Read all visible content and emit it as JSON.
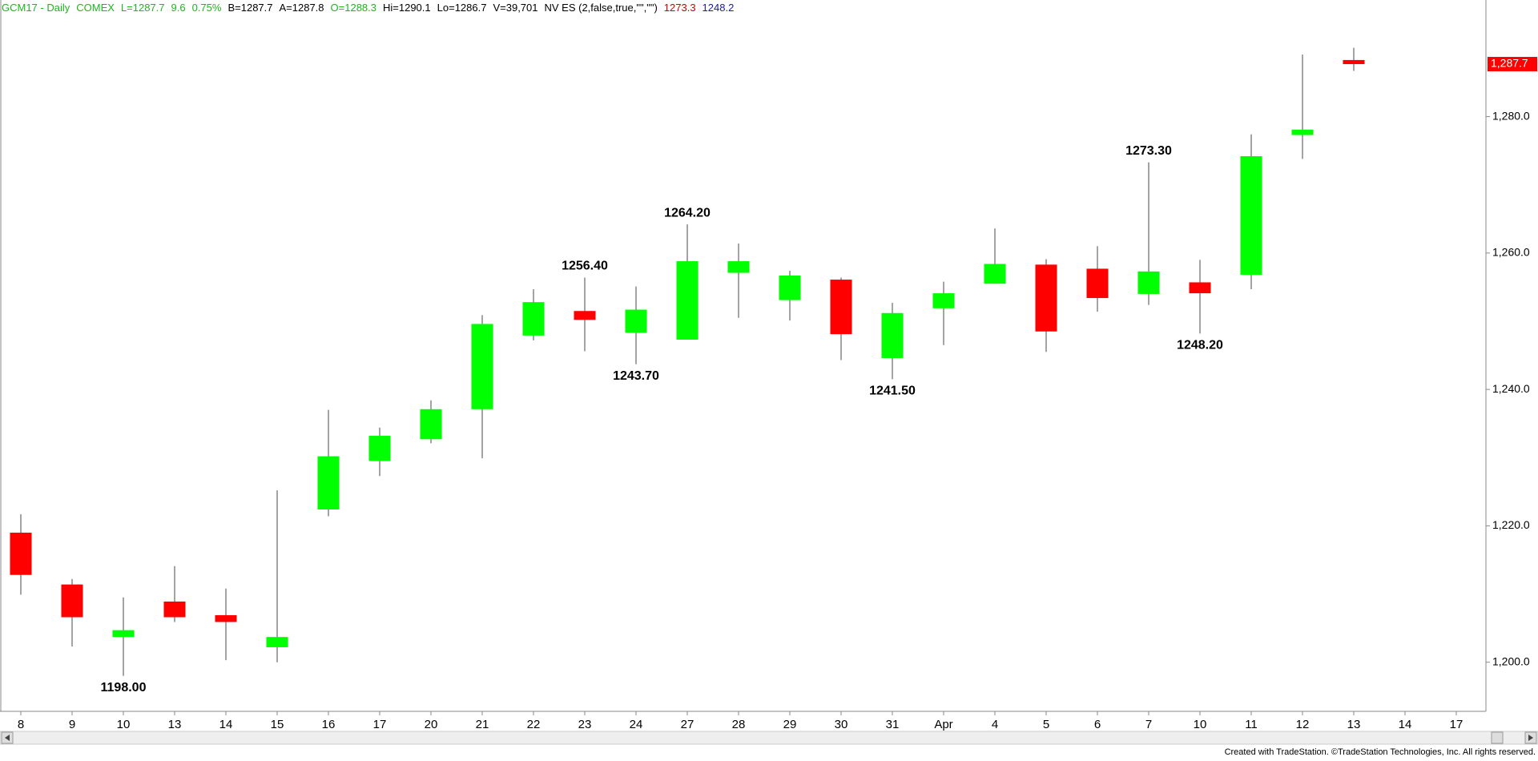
{
  "chart_data": {
    "type": "candlestick",
    "header": [
      {
        "text": "GCM17 - Daily",
        "color": "#1fb51f"
      },
      {
        "text": "COMEX",
        "color": "#1fb51f"
      },
      {
        "text": "L=1287.7",
        "color": "#1fb51f"
      },
      {
        "text": "9.6",
        "color": "#1fb51f"
      },
      {
        "text": "0.75%",
        "color": "#1fb51f"
      },
      {
        "text": "B=1287.7",
        "color": "#000000"
      },
      {
        "text": "A=1287.8",
        "color": "#000000"
      },
      {
        "text": "O=1288.3",
        "color": "#1fb51f"
      },
      {
        "text": "Hi=1290.1",
        "color": "#000000"
      },
      {
        "text": "Lo=1286.7",
        "color": "#000000"
      },
      {
        "text": "V=39,701",
        "color": "#000000"
      },
      {
        "text": "NV ES (2,false,true,\"\",\"\")",
        "color": "#000000"
      },
      {
        "text": "1273.3",
        "color": "#d00000"
      },
      {
        "text": "1248.2",
        "color": "#1a1aa0"
      }
    ],
    "categories": [
      "8",
      "9",
      "10",
      "13",
      "14",
      "15",
      "16",
      "17",
      "20",
      "21",
      "22",
      "23",
      "24",
      "27",
      "28",
      "29",
      "30",
      "31",
      "Apr",
      "4",
      "5",
      "6",
      "7",
      "10",
      "11",
      "12",
      "13",
      "14",
      "17"
    ],
    "open": [
      1219.0,
      1211.4,
      1203.7,
      1208.9,
      1206.9,
      1202.2,
      1222.4,
      1229.5,
      1232.7,
      1237.1,
      1247.9,
      1251.5,
      1248.3,
      1247.3,
      1257.1,
      1253.1,
      1256.1,
      1244.6,
      1251.9,
      1255.5,
      1258.3,
      1257.7,
      1254.0,
      1255.7,
      1256.8,
      1277.3,
      1288.3,
      null,
      null
    ],
    "high": [
      1221.7,
      1212.2,
      1209.5,
      1214.1,
      1210.8,
      1225.2,
      1237.0,
      1234.4,
      1238.4,
      1250.9,
      1254.7,
      1256.4,
      1255.1,
      1264.2,
      1261.4,
      1257.4,
      1256.4,
      1252.7,
      1255.8,
      1263.6,
      1259.1,
      1261.0,
      1273.3,
      1259.0,
      1277.4,
      1289.1,
      1290.1,
      null,
      null
    ],
    "low": [
      1209.9,
      1202.3,
      1198.0,
      1205.9,
      1200.3,
      1200.0,
      1221.4,
      1227.3,
      1232.1,
      1229.9,
      1247.2,
      1245.6,
      1243.7,
      1247.3,
      1250.5,
      1250.1,
      1244.3,
      1241.5,
      1246.5,
      1255.5,
      1245.5,
      1251.4,
      1252.4,
      1248.2,
      1254.7,
      1273.8,
      1286.7,
      null,
      null
    ],
    "close": [
      1212.8,
      1206.6,
      1204.7,
      1206.6,
      1205.9,
      1203.7,
      1230.2,
      1233.2,
      1237.1,
      1249.6,
      1252.8,
      1250.2,
      1251.7,
      1258.8,
      1258.8,
      1256.7,
      1248.1,
      1251.2,
      1254.1,
      1258.4,
      1248.5,
      1253.4,
      1257.3,
      1254.1,
      1274.2,
      1278.1,
      1287.7,
      null,
      null
    ],
    "high_labels": [
      null,
      null,
      null,
      null,
      null,
      null,
      null,
      null,
      null,
      null,
      null,
      "1256.40",
      null,
      "1264.20",
      null,
      null,
      null,
      null,
      null,
      null,
      null,
      null,
      "1273.30",
      null,
      null,
      null,
      null,
      null,
      null
    ],
    "low_labels": [
      null,
      null,
      "1198.00",
      null,
      null,
      null,
      null,
      null,
      null,
      null,
      null,
      null,
      "1243.70",
      null,
      null,
      null,
      null,
      "1241.50",
      null,
      null,
      null,
      null,
      null,
      "1248.20",
      null,
      null,
      null,
      null,
      null
    ],
    "up_color": "#00ff00",
    "down_color": "#ff0000",
    "wick_color": "#666666",
    "ylim": [
      1192.8,
      1297.1
    ],
    "yticks": [
      {
        "value": 1200,
        "label": "1,200.0"
      },
      {
        "value": 1220,
        "label": "1,220.0"
      },
      {
        "value": 1240,
        "label": "1,240.0"
      },
      {
        "value": 1260,
        "label": "1,260.0"
      },
      {
        "value": 1280,
        "label": "1,280.0"
      }
    ],
    "last_price": {
      "value": 1287.7,
      "label": "1,287.7",
      "color": "#ff0000"
    },
    "footer": "Created with TradeStation. ©TradeStation Technologies, Inc. All rights reserved."
  }
}
